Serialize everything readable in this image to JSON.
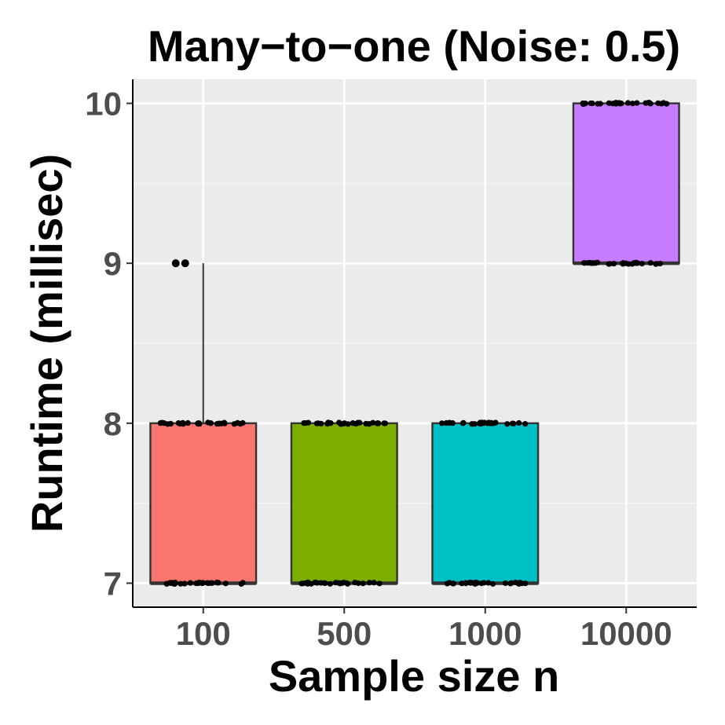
{
  "chart_data": {
    "type": "box",
    "title": "Many−to−one (Noise: 0.5)",
    "xlabel": "Sample size n",
    "ylabel": "Runtime (millisec)",
    "categories": [
      "100",
      "500",
      "1000",
      "10000"
    ],
    "y_ticks": [
      7,
      8,
      9,
      10
    ],
    "ylim": [
      6.85,
      10.15
    ],
    "grid": true,
    "legend": "none",
    "boxes": [
      {
        "category": "100",
        "min": 7,
        "q1": 7,
        "median": 7,
        "q3": 8,
        "max": 9,
        "outliers": [
          9,
          9
        ],
        "color": "#F8766D"
      },
      {
        "category": "500",
        "min": 7,
        "q1": 7,
        "median": 7,
        "q3": 8,
        "max": 8,
        "outliers": [],
        "color": "#7CAE00"
      },
      {
        "category": "1000",
        "min": 7,
        "q1": 7,
        "median": 7,
        "q3": 8,
        "max": 8,
        "outliers": [],
        "color": "#00BFC4"
      },
      {
        "category": "10000",
        "min": 9,
        "q1": 9,
        "median": 9,
        "q3": 10,
        "max": 10,
        "outliers": [],
        "color": "#C77CFF"
      }
    ],
    "jitter_values": [
      {
        "category": "100",
        "values": [
          7,
          8
        ]
      },
      {
        "category": "500",
        "values": [
          7,
          8
        ]
      },
      {
        "category": "1000",
        "values": [
          7,
          8
        ]
      },
      {
        "category": "10000",
        "values": [
          9,
          10
        ]
      }
    ]
  },
  "colors": {
    "panel_background": "#EBEBEB",
    "grid_major": "#FFFFFF",
    "grid_minor": "#F5F5F5",
    "box_outline": "#333333",
    "points": "#000000"
  }
}
